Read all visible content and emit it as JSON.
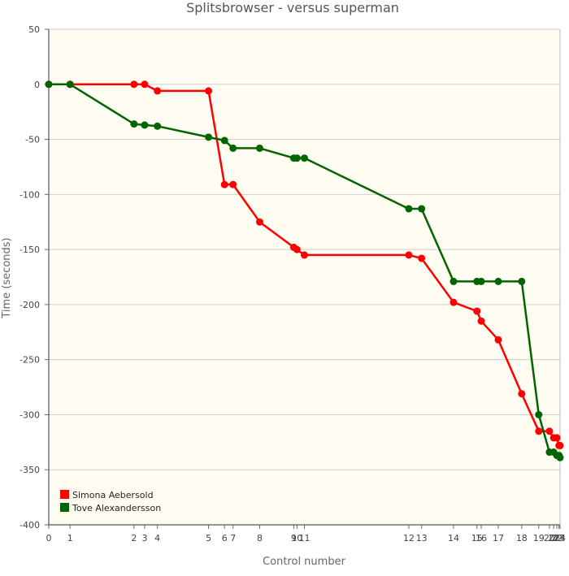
{
  "chart_data": {
    "type": "line",
    "title": "Splitsbrowser - versus superman",
    "xlabel": "Control number",
    "ylabel": "Time (seconds)",
    "ylim": [
      -400,
      50
    ],
    "xlim": [
      0,
      24
    ],
    "y_ticks": [
      50,
      0,
      -50,
      -100,
      -150,
      -200,
      -250,
      -300,
      -350,
      -400
    ],
    "x_ticks": [
      {
        "label": "0",
        "x": 0
      },
      {
        "label": "1",
        "x": 1.0
      },
      {
        "label": "2",
        "x": 4.0
      },
      {
        "label": "3",
        "x": 4.5
      },
      {
        "label": "4",
        "x": 5.1
      },
      {
        "label": "5",
        "x": 7.5
      },
      {
        "label": "6",
        "x": 8.25
      },
      {
        "label": "7",
        "x": 8.65
      },
      {
        "label": "8",
        "x": 9.9
      },
      {
        "label": "9",
        "x": 11.5
      },
      {
        "label": "10",
        "x": 11.65
      },
      {
        "label": "11",
        "x": 12.0
      },
      {
        "label": "12",
        "x": 16.9
      },
      {
        "label": "13",
        "x": 17.5
      },
      {
        "label": "14",
        "x": 19.0
      },
      {
        "label": "15",
        "x": 20.1
      },
      {
        "label": "16",
        "x": 20.3
      },
      {
        "label": "17",
        "x": 21.1
      },
      {
        "label": "18",
        "x": 22.2
      },
      {
        "label": "19",
        "x": 23.0
      },
      {
        "label": "20",
        "x": 23.5
      },
      {
        "label": "21",
        "x": 23.7
      },
      {
        "label": "22",
        "x": 23.85
      },
      {
        "label": "23",
        "x": 23.95
      },
      {
        "label": "24",
        "x": 24.0
      }
    ],
    "grid": true,
    "legend_position": "bottom-left",
    "series": [
      {
        "name": "Simona Aebersold",
        "color": "#ff0000",
        "x": [
          0,
          1.0,
          4.0,
          4.5,
          5.1,
          7.5,
          8.25,
          8.65,
          9.9,
          11.5,
          11.65,
          12.0,
          16.9,
          17.5,
          19.0,
          20.1,
          20.3,
          21.1,
          22.2,
          23.0,
          23.5,
          23.7,
          23.85,
          23.95,
          24.0
        ],
        "values": [
          0,
          0,
          0,
          0,
          -6,
          -6,
          -91,
          -91,
          -125,
          -148,
          -150,
          -155,
          -155,
          -158,
          -198,
          -206,
          -215,
          -232,
          -281,
          -315,
          -315,
          -321,
          -321,
          -328,
          -328
        ]
      },
      {
        "name": "Tove Alexandersson",
        "color": "#006400",
        "x": [
          0,
          1.0,
          4.0,
          4.5,
          5.1,
          7.5,
          8.25,
          8.65,
          9.9,
          11.5,
          11.65,
          12.0,
          16.9,
          17.5,
          19.0,
          20.1,
          20.3,
          21.1,
          22.2,
          23.0,
          23.5,
          23.7,
          23.85,
          23.95,
          24.0
        ],
        "values": [
          0,
          0,
          -36,
          -37,
          -38,
          -48,
          -51,
          -58,
          -58,
          -67,
          -67,
          -67,
          -113,
          -113,
          -179,
          -179,
          -179,
          -179,
          -179,
          -300,
          -334,
          -334,
          -337,
          -337,
          -339
        ]
      }
    ]
  }
}
